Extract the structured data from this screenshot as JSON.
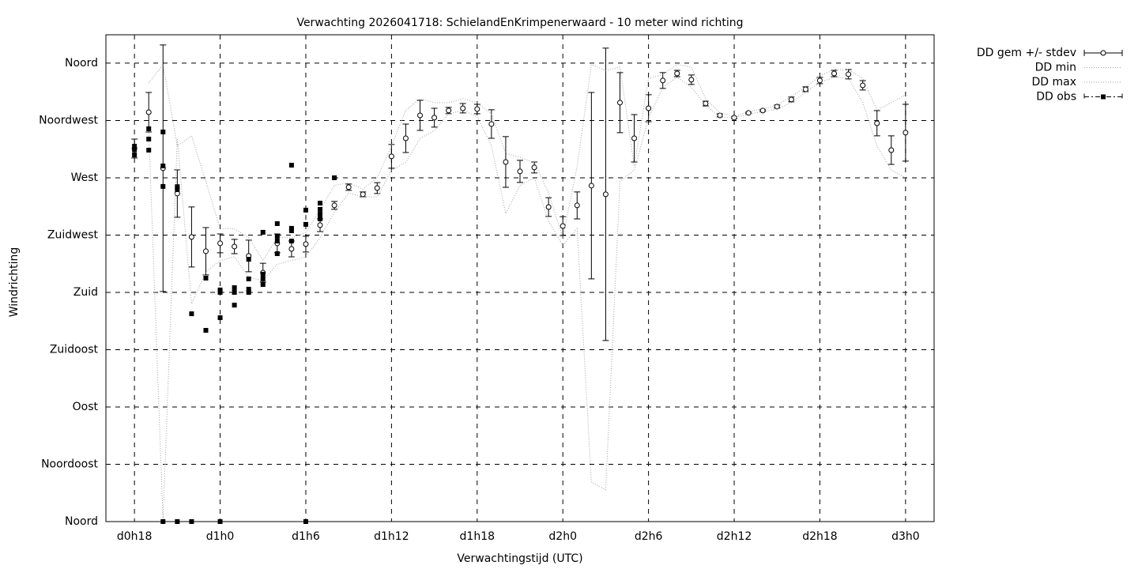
{
  "chart_data": {
    "type": "line",
    "title": "Verwachting 2026041718: SchielandEnKrimpenerwaard - 10 meter wind richting",
    "x_label": "Verwachtingstijd (UTC)",
    "y_label": "Windrichting",
    "xlim": [
      16,
      74
    ],
    "xticks": [
      {
        "value": 18,
        "label": "d0h18"
      },
      {
        "value": 24,
        "label": "d1h0"
      },
      {
        "value": 30,
        "label": "d1h6"
      },
      {
        "value": 36,
        "label": "d1h12"
      },
      {
        "value": 42,
        "label": "d1h18"
      },
      {
        "value": 48,
        "label": "d2h0"
      },
      {
        "value": 54,
        "label": "d2h6"
      },
      {
        "value": 60,
        "label": "d2h12"
      },
      {
        "value": 66,
        "label": "d2h18"
      },
      {
        "value": 72,
        "label": "d3h0"
      }
    ],
    "ylim": [
      0,
      382.3
    ],
    "yticks": [
      {
        "value": 0,
        "label": "Noord"
      },
      {
        "value": 45,
        "label": "Noordoost"
      },
      {
        "value": 90,
        "label": "Oost"
      },
      {
        "value": 135,
        "label": "Zuidoost"
      },
      {
        "value": 180,
        "label": "Zuid"
      },
      {
        "value": 225,
        "label": "Zuidwest"
      },
      {
        "value": 270,
        "label": "West"
      },
      {
        "value": 315,
        "label": "Noordwest"
      },
      {
        "value": 360,
        "label": "Noord"
      }
    ],
    "grid": true,
    "legend": "top-right",
    "series": [
      {
        "name": "DD gem +/- stdev",
        "style": "errorbar",
        "color": "#000000",
        "x": [
          18,
          19,
          20,
          21,
          22,
          23,
          24,
          25,
          26,
          27,
          28,
          29,
          30,
          31,
          32,
          33,
          34,
          35,
          36,
          37,
          38,
          39,
          40,
          41,
          42,
          43,
          44,
          45,
          46,
          47,
          48,
          49,
          50,
          51,
          52,
          53,
          54,
          55,
          56,
          57,
          58,
          59,
          60,
          61,
          62,
          63,
          64,
          65,
          66,
          67,
          68,
          69,
          70,
          71,
          72
        ],
        "values": [
          293,
          321.5,
          277.5,
          257.6,
          223.5,
          212.3,
          218.5,
          216,
          208.6,
          195.5,
          218.5,
          214.1,
          217.9,
          232.8,
          248.3,
          262.6,
          257,
          261.9,
          286.8,
          301,
          319,
          317.2,
          322.8,
          324.6,
          324,
          312.2,
          282.4,
          275,
          278.1,
          247,
          232.1,
          248.3,
          263.8,
          257,
          329,
          301,
          324.6,
          346.4,
          351.9,
          347,
          328.3,
          319,
          317.2,
          320.9,
          322.8,
          325.9,
          331.5,
          339.5,
          346.4,
          351.9,
          351.3,
          342.6,
          312.8,
          291.7,
          305.4
        ],
        "errors": [
          7.4,
          15.5,
          96.8,
          18.6,
          23.6,
          18.6,
          7.4,
          5.6,
          12.4,
          7.4,
          7.4,
          6.2,
          6.2,
          5,
          3.1,
          2.5,
          1.9,
          4.3,
          9.3,
          11.2,
          11.8,
          7.4,
          2.5,
          3.7,
          3.7,
          11.2,
          19.9,
          8.7,
          4.3,
          7.4,
          7.4,
          10.6,
          73.2,
          114.8,
          23.6,
          18.6,
          10.6,
          6.2,
          2.5,
          3.7,
          1.9,
          1.2,
          0.6,
          0.6,
          0.6,
          1.2,
          1.9,
          1.9,
          2.5,
          2.5,
          3.7,
          3.7,
          9.9,
          11.2,
          22.3
        ]
      },
      {
        "name": "DD min",
        "style": "dotted",
        "color": "#a0a0a0",
        "x": [
          19,
          20,
          21,
          22,
          23,
          24,
          25,
          26,
          27,
          28,
          29,
          30,
          31,
          32,
          33,
          34,
          35,
          36,
          37,
          38,
          39,
          40,
          41,
          42,
          43,
          44,
          45,
          46,
          47,
          48,
          49,
          50,
          51,
          52,
          53,
          54,
          55,
          56,
          57,
          58,
          59,
          60,
          61,
          62,
          63,
          64,
          65,
          66,
          67,
          68,
          69,
          70,
          71,
          72
        ],
        "values": [
          307,
          1,
          301,
          171,
          196,
          205,
          208,
          192,
          189,
          202,
          205,
          208,
          223,
          243,
          258,
          255,
          255,
          276,
          282,
          301,
          307,
          320,
          323,
          318,
          295,
          242,
          264,
          270,
          236,
          217,
          230,
          31,
          25,
          267,
          276,
          317,
          341,
          349,
          341,
          327,
          318,
          317,
          320,
          322,
          324,
          329,
          337,
          345,
          349,
          348,
          329,
          295,
          276,
          270
        ]
      },
      {
        "name": "DD max",
        "style": "dotted",
        "color": "#a0a0a0",
        "x": [
          19,
          20,
          21,
          22,
          23,
          24,
          25,
          26,
          27,
          28,
          29,
          30,
          31,
          32,
          33,
          34,
          35,
          36,
          37,
          38,
          39,
          40,
          41,
          42,
          43,
          44,
          45,
          46,
          47,
          48,
          49,
          50,
          51,
          52,
          53,
          54,
          55,
          56,
          57,
          58,
          59,
          60,
          61,
          62,
          63,
          64,
          65,
          66,
          67,
          68,
          69,
          70,
          71,
          72
        ],
        "values": [
          344.5,
          358.8,
          295,
          303,
          267,
          230,
          230,
          223,
          205,
          223,
          223,
          227,
          245,
          264,
          266,
          261,
          270,
          295,
          323,
          332,
          329,
          329,
          332,
          329,
          320,
          289,
          286,
          282,
          258,
          223,
          279,
          359,
          354,
          357,
          279,
          348,
          351,
          359,
          357,
          332,
          321,
          318,
          322,
          324,
          327,
          334,
          341,
          350,
          355,
          355,
          348,
          323,
          329,
          335
        ]
      },
      {
        "name": "DD obs",
        "style": "points",
        "color": "#000000",
        "x": [
          18,
          18,
          18,
          19,
          19,
          19,
          20,
          20,
          20,
          20,
          21,
          21,
          21,
          22,
          22,
          23,
          23,
          24,
          24,
          24,
          24,
          25,
          25,
          25,
          26,
          26,
          26,
          26,
          27,
          27,
          27,
          27,
          28,
          28,
          28,
          28,
          29,
          29,
          29,
          29,
          30,
          30,
          30,
          31,
          31,
          31,
          31,
          32
        ],
        "values": [
          294.8,
          292,
          288,
          308.5,
          300.4,
          291.7,
          306,
          279.3,
          263.2,
          0,
          263,
          260.7,
          0,
          163.2,
          0,
          191.2,
          150.2,
          181.9,
          180,
          160.1,
          0,
          183.7,
          180,
          170,
          206,
          190.6,
          182.5,
          180,
          227.2,
          194.3,
          190.6,
          186.2,
          234,
          224.1,
          220.3,
          210.4,
          279.9,
          230.3,
          228.4,
          220.3,
          244.6,
          233.4,
          0,
          250.1,
          245.2,
          241.4,
          237.7,
          270
        ]
      }
    ]
  }
}
